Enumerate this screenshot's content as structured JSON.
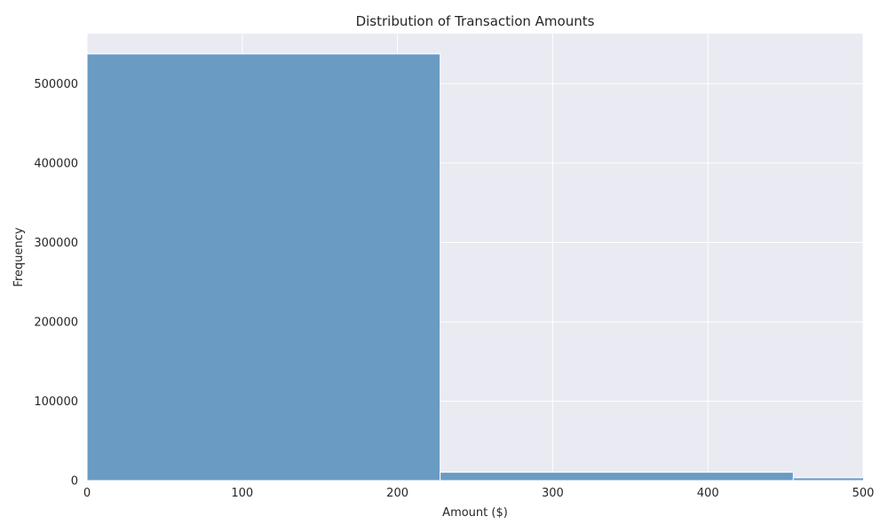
{
  "chart_data": {
    "type": "bar",
    "subtype": "histogram",
    "title": "Distribution of Transaction Amounts",
    "xlabel": "Amount ($)",
    "ylabel": "Frequency",
    "xlim": [
      0,
      500
    ],
    "ylim": [
      0,
      563000
    ],
    "xticks": [
      0,
      100,
      200,
      300,
      400,
      500
    ],
    "yticks": [
      0,
      100000,
      200000,
      300000,
      400000,
      500000
    ],
    "bins": [
      {
        "x0": 0,
        "x1": 227.5,
        "value": 537500
      },
      {
        "x0": 227.5,
        "x1": 455,
        "value": 10500
      },
      {
        "x0": 455,
        "x1": 682.5,
        "value": 3500
      }
    ],
    "grid": true,
    "bar_color": "#6a9bc3",
    "background_color": "#eaeaf2",
    "grid_color": "#ffffff"
  }
}
